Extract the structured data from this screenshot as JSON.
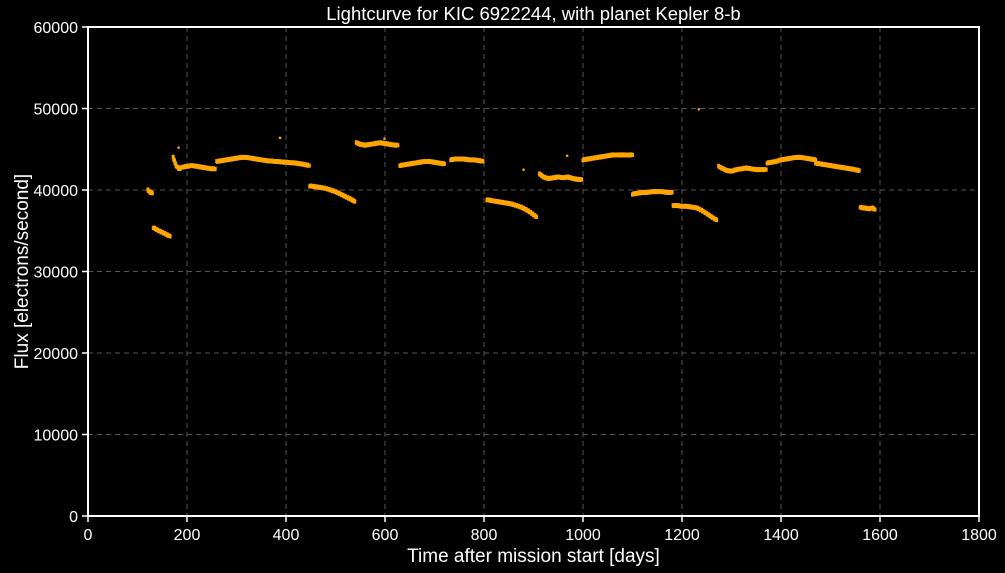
{
  "chart_data": {
    "type": "scatter",
    "title": "Lightcurve for KIC 6922244, with planet Kepler 8-b",
    "xlabel": "Time after mission start [days]",
    "ylabel": "Flux [electrons/second]",
    "xlim": [
      0,
      1800
    ],
    "ylim": [
      0,
      60000
    ],
    "xticks": [
      0,
      200,
      400,
      600,
      800,
      1000,
      1200,
      1400,
      1600,
      1800
    ],
    "yticks": [
      0,
      10000,
      20000,
      30000,
      40000,
      50000,
      60000
    ],
    "xtick_labels": [
      "0",
      "200",
      "400",
      "600",
      "800",
      "1000",
      "1200",
      "1400",
      "1600",
      "1800"
    ],
    "ytick_labels": [
      "0",
      "10000",
      "20000",
      "30000",
      "40000",
      "50000",
      "60000"
    ],
    "grid": true,
    "background": "#000000",
    "point_color": "#ffa500",
    "segments": [
      {
        "x": [
          121,
          124,
          127,
          130
        ],
        "y": [
          40000,
          39800,
          39700,
          39600
        ]
      },
      {
        "x": [
          132,
          140,
          150,
          160,
          166
        ],
        "y": [
          35400,
          35100,
          34800,
          34500,
          34300
        ]
      },
      {
        "x": [
          172,
          175,
          178,
          182,
          185,
          190,
          200,
          210,
          220,
          230,
          240,
          250,
          257
        ],
        "y": [
          44000,
          43500,
          43000,
          42700,
          42600,
          42800,
          42900,
          43000,
          42900,
          42800,
          42700,
          42600,
          42600
        ]
      },
      {
        "x": [
          260,
          270,
          280,
          290,
          300,
          310,
          320,
          330,
          340,
          350,
          360,
          380,
          400,
          420,
          440,
          447
        ],
        "y": [
          43500,
          43600,
          43700,
          43800,
          43900,
          44000,
          44000,
          43900,
          43800,
          43700,
          43600,
          43500,
          43400,
          43300,
          43100,
          43000
        ]
      },
      {
        "x": [
          448,
          460,
          470,
          480,
          490,
          500,
          510,
          520,
          530,
          539
        ],
        "y": [
          40500,
          40400,
          40300,
          40200,
          40000,
          39800,
          39500,
          39200,
          38900,
          38600
        ]
      },
      {
        "x": [
          542,
          550,
          560,
          570,
          580,
          590,
          600,
          610,
          620,
          626
        ],
        "y": [
          45800,
          45600,
          45500,
          45600,
          45700,
          45800,
          45700,
          45600,
          45500,
          45500
        ]
      },
      {
        "x": [
          630,
          640,
          650,
          660,
          670,
          680,
          690,
          700,
          710,
          720
        ],
        "y": [
          43000,
          43100,
          43200,
          43300,
          43400,
          43500,
          43500,
          43400,
          43300,
          43200
        ]
      },
      {
        "x": [
          733,
          740,
          750,
          760,
          770,
          780,
          790,
          798
        ],
        "y": [
          43700,
          43800,
          43800,
          43800,
          43700,
          43700,
          43600,
          43500
        ]
      },
      {
        "x": [
          806,
          815,
          825,
          835,
          845,
          855,
          865,
          875,
          885,
          895,
          906
        ],
        "y": [
          38800,
          38700,
          38600,
          38500,
          38400,
          38300,
          38100,
          37900,
          37600,
          37200,
          36700
        ]
      },
      {
        "x": [
          912,
          920,
          930,
          940,
          950,
          960,
          970,
          980,
          990,
          997
        ],
        "y": [
          42000,
          41600,
          41400,
          41500,
          41600,
          41500,
          41600,
          41400,
          41300,
          41300
        ]
      },
      {
        "x": [
          1000,
          1010,
          1020,
          1030,
          1040,
          1050,
          1060,
          1070,
          1080,
          1090,
          1100
        ],
        "y": [
          43700,
          43800,
          43900,
          44000,
          44100,
          44200,
          44300,
          44300,
          44300,
          44300,
          44300
        ]
      },
      {
        "x": [
          1100,
          1110,
          1120,
          1130,
          1140,
          1150,
          1160,
          1170,
          1180
        ],
        "y": [
          39500,
          39600,
          39700,
          39700,
          39800,
          39800,
          39800,
          39700,
          39700
        ]
      },
      {
        "x": [
          1182,
          1190,
          1200,
          1210,
          1220,
          1230,
          1240,
          1250,
          1260,
          1270
        ],
        "y": [
          38100,
          38100,
          38000,
          38000,
          37900,
          37800,
          37500,
          37100,
          36700,
          36300
        ]
      },
      {
        "x": [
          1274,
          1280,
          1290,
          1300,
          1310,
          1320,
          1330,
          1340,
          1350,
          1360,
          1370
        ],
        "y": [
          42900,
          42700,
          42400,
          42300,
          42500,
          42600,
          42700,
          42600,
          42500,
          42500,
          42500
        ]
      },
      {
        "x": [
          1372,
          1380,
          1390,
          1400,
          1410,
          1420,
          1430,
          1440,
          1450,
          1460,
          1470
        ],
        "y": [
          43300,
          43400,
          43500,
          43700,
          43800,
          43900,
          44000,
          44000,
          43900,
          43800,
          43700
        ]
      },
      {
        "x": [
          1470,
          1480,
          1490,
          1500,
          1510,
          1520,
          1530,
          1540,
          1550,
          1558
        ],
        "y": [
          43300,
          43200,
          43100,
          43000,
          42900,
          42800,
          42700,
          42600,
          42500,
          42400
        ]
      },
      {
        "x": [
          1560,
          1565,
          1570,
          1575,
          1580,
          1585,
          1590
        ],
        "y": [
          37900,
          37800,
          37800,
          37700,
          37700,
          37800,
          37600
        ]
      }
    ],
    "outliers": {
      "x": [
        183,
        388,
        599,
        880,
        888,
        968,
        1234
      ],
      "y": [
        45200,
        46400,
        46300,
        42500,
        37600,
        44200,
        49900
      ]
    }
  }
}
